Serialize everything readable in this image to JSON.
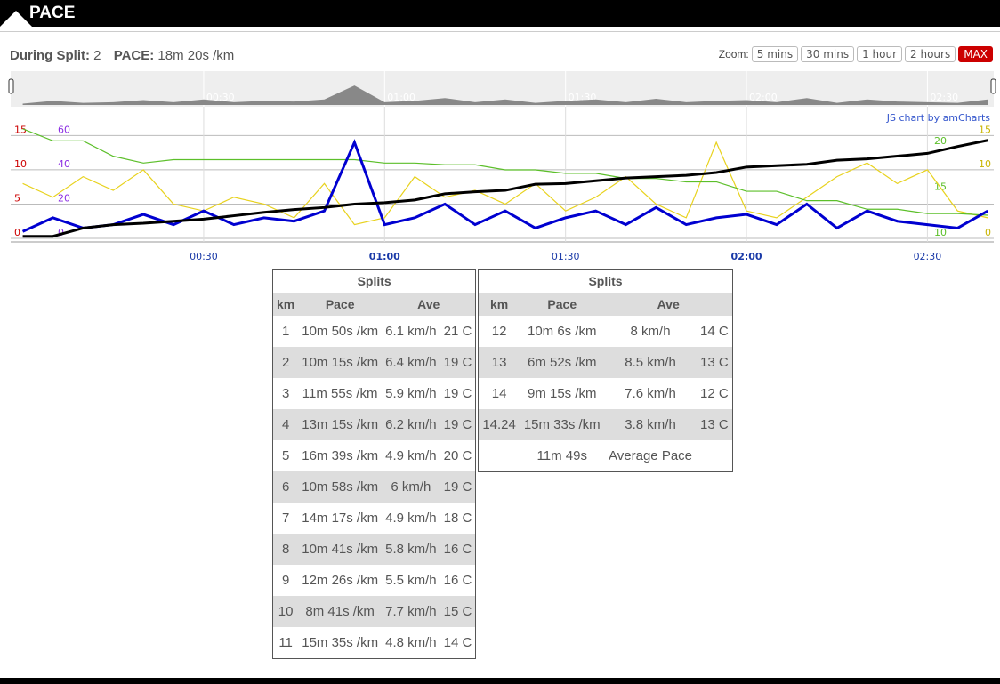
{
  "header": {
    "title": "PACE"
  },
  "status": {
    "split_label": "During Split:",
    "split": "2",
    "pace_label": "PACE:",
    "pace": "18m 20s /km"
  },
  "zoom": {
    "label": "Zoom:",
    "options": [
      "5 mins",
      "30 mins",
      "1 hour",
      "2 hours",
      "MAX"
    ]
  },
  "credit": "JS chart by amCharts",
  "chart_data": {
    "type": "line",
    "x": [
      0,
      5,
      10,
      15,
      20,
      25,
      30,
      35,
      40,
      45,
      50,
      55,
      60,
      65,
      70,
      75,
      80,
      85,
      90,
      95,
      100,
      105,
      110,
      115,
      120,
      125,
      130,
      135,
      140,
      145,
      150,
      155,
      160
    ],
    "xlim": [
      -2,
      161
    ],
    "xticks": [
      {
        "value": 30,
        "label": "00:30"
      },
      {
        "value": 60,
        "label": "01:00"
      },
      {
        "value": 90,
        "label": "01:30"
      },
      {
        "value": 120,
        "label": "02:00"
      },
      {
        "value": 150,
        "label": "02:30"
      }
    ],
    "ylim": [
      0,
      19.2
    ],
    "yticks": [
      0,
      5,
      10,
      15
    ],
    "y2lim": [
      0,
      76.9
    ],
    "y2ticks": [
      0,
      20,
      40,
      60
    ],
    "y3lim": [
      0,
      19.2
    ],
    "y3ticks": [
      0,
      10,
      15
    ],
    "y4lim": [
      10,
      24.4
    ],
    "y4ticks": [
      10,
      15,
      20
    ],
    "grid": true,
    "series": [
      {
        "color": "#e8d21e",
        "axis": "y3",
        "values": [
          8,
          6,
          9,
          7,
          10,
          5,
          4,
          6,
          5,
          3,
          8,
          2,
          3,
          9,
          6,
          7,
          5,
          8,
          4,
          6,
          9,
          5,
          3,
          14,
          4,
          3,
          6,
          9,
          11,
          8,
          10,
          4,
          3
        ]
      },
      {
        "color": "#5cbf2a",
        "axis": "y2",
        "values": [
          64,
          57,
          57,
          48,
          44,
          46,
          46,
          46,
          46,
          46,
          46,
          46,
          44,
          44,
          43,
          43,
          40,
          40,
          38,
          38,
          35,
          35,
          33,
          33,
          27.5,
          27.5,
          22,
          22,
          17,
          17,
          14.5,
          14.5,
          13.5
        ]
      },
      {
        "color": "#0000d0",
        "axis": "y",
        "values": [
          1,
          3,
          1.5,
          2,
          3.5,
          2,
          4,
          2,
          3,
          2.5,
          4,
          14,
          2,
          3,
          5,
          2,
          4,
          1.5,
          3,
          4,
          2,
          4.5,
          2,
          3,
          3.5,
          2,
          5,
          1.5,
          4,
          2.5,
          2,
          1.5,
          4
        ]
      },
      {
        "color": "#000000",
        "axis": "y",
        "values": [
          0.3,
          0.3,
          1.5,
          2,
          2.2,
          2.5,
          2.8,
          3.3,
          3.8,
          4.2,
          4.5,
          5,
          5.2,
          5.6,
          6.5,
          6.8,
          7,
          7.9,
          8,
          8.4,
          8.8,
          9,
          9.2,
          9.6,
          10.4,
          10.6,
          10.8,
          11.4,
          11.6,
          12,
          12.4,
          13.4,
          14.3
        ]
      }
    ]
  },
  "splits_left": {
    "title": "Splits",
    "headers": [
      "km",
      "Pace",
      "Ave"
    ],
    "rows": [
      [
        "1",
        "10m 50s /km",
        "6.1 km/h",
        "21 C"
      ],
      [
        "2",
        "10m 15s /km",
        "6.4 km/h",
        "19 C"
      ],
      [
        "3",
        "11m 55s /km",
        "5.9 km/h",
        "19 C"
      ],
      [
        "4",
        "13m 15s /km",
        "6.2 km/h",
        "19 C"
      ],
      [
        "5",
        "16m 39s /km",
        "4.9 km/h",
        "20 C"
      ],
      [
        "6",
        "10m 58s /km",
        "6 km/h",
        "19 C"
      ],
      [
        "7",
        "14m 17s /km",
        "4.9 km/h",
        "18 C"
      ],
      [
        "8",
        "10m 41s /km",
        "5.8 km/h",
        "16 C"
      ],
      [
        "9",
        "12m 26s /km",
        "5.5 km/h",
        "16 C"
      ],
      [
        "10",
        "8m 41s /km",
        "7.7 km/h",
        "15 C"
      ],
      [
        "11",
        "15m 35s /km",
        "4.8 km/h",
        "14 C"
      ]
    ]
  },
  "splits_right": {
    "title": "Splits",
    "headers": [
      "km",
      "Pace",
      "Ave"
    ],
    "rows": [
      [
        "12",
        "10m 6s /km",
        "8 km/h",
        "14 C"
      ],
      [
        "13",
        "6m 52s /km",
        "8.5 km/h",
        "13 C"
      ],
      [
        "14",
        "9m 15s /km",
        "7.6 km/h",
        "12 C"
      ],
      [
        "14.24",
        "15m 33s /km",
        "3.8 km/h",
        "13 C"
      ]
    ],
    "footer": {
      "pace": "11m 49s",
      "label": "Average Pace"
    }
  }
}
